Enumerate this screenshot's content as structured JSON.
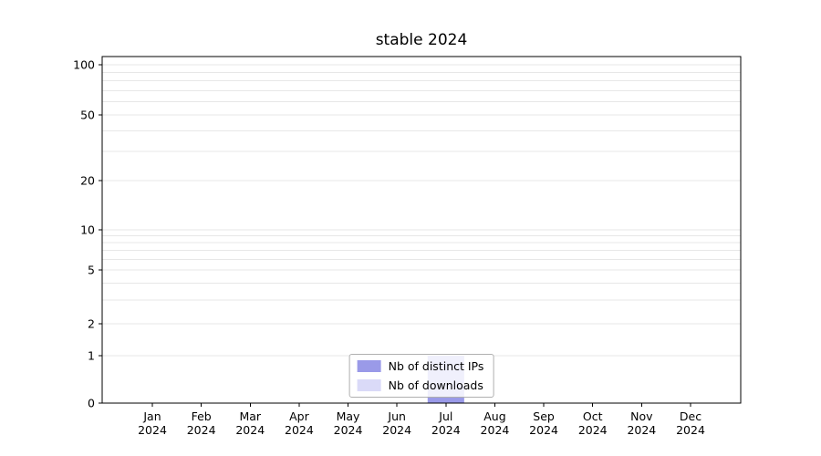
{
  "chart_data": {
    "type": "bar",
    "title": "stable 2024",
    "x": [
      "Jan",
      "Feb",
      "Mar",
      "Apr",
      "May",
      "Jun",
      "Jul",
      "Aug",
      "Sep",
      "Oct",
      "Nov",
      "Dec"
    ],
    "x_year": "2024",
    "series": [
      {
        "name": "Nb of distinct IPs",
        "color": "#9a9ae8",
        "values": [
          0,
          0,
          0,
          0,
          0,
          0,
          1,
          0,
          0,
          0,
          0,
          0
        ]
      },
      {
        "name": "Nb of downloads",
        "color": "#dadaf8",
        "values": [
          0,
          0,
          0,
          0,
          0,
          0,
          1,
          0,
          0,
          0,
          0,
          0
        ]
      }
    ],
    "yticks": [
      0,
      1,
      2,
      5,
      10,
      20,
      50,
      100
    ],
    "ylim": [
      0,
      110
    ],
    "scale": "log-like (0 pinned at baseline)",
    "grid": "horizontal minor gridlines",
    "legend_position": "bottom-center"
  }
}
